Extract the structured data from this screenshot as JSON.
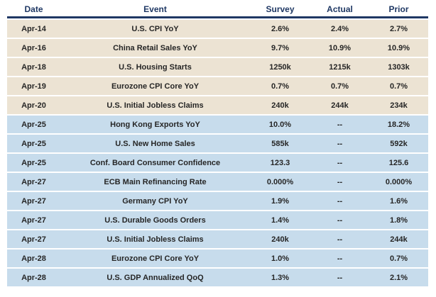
{
  "title": "Economic calendar table",
  "colors": {
    "header_text": "#1F3864",
    "header_rule": "#1F3864",
    "past_row_bg": "#ECE3D3",
    "upcoming_row_bg": "#C7DCEC",
    "cell_text": "#262626",
    "background": "#FFFFFF"
  },
  "chart_data": {
    "type": "table",
    "columns": [
      "Date",
      "Event",
      "Survey",
      "Actual",
      "Prior"
    ],
    "rows": [
      {
        "date": "Apr-14",
        "event": "U.S. CPI YoY",
        "survey": "2.6%",
        "actual": "2.4%",
        "prior": "2.7%",
        "group": "past"
      },
      {
        "date": "Apr-16",
        "event": "China Retail Sales YoY",
        "survey": "9.7%",
        "actual": "10.9%",
        "prior": "10.9%",
        "group": "past"
      },
      {
        "date": "Apr-18",
        "event": "U.S. Housing Starts",
        "survey": "1250k",
        "actual": "1215k",
        "prior": "1303k",
        "group": "past"
      },
      {
        "date": "Apr-19",
        "event": "Eurozone CPI Core YoY",
        "survey": "0.7%",
        "actual": "0.7%",
        "prior": "0.7%",
        "group": "past"
      },
      {
        "date": "Apr-20",
        "event": "U.S. Initial Jobless Claims",
        "survey": "240k",
        "actual": "244k",
        "prior": "234k",
        "group": "past"
      },
      {
        "date": "Apr-25",
        "event": "Hong Kong Exports YoY",
        "survey": "10.0%",
        "actual": "--",
        "prior": "18.2%",
        "group": "upcoming"
      },
      {
        "date": "Apr-25",
        "event": "U.S. New Home Sales",
        "survey": "585k",
        "actual": "--",
        "prior": "592k",
        "group": "upcoming"
      },
      {
        "date": "Apr-25",
        "event": "Conf.  Board Consumer Confidence",
        "survey": "123.3",
        "actual": "--",
        "prior": "125.6",
        "group": "upcoming"
      },
      {
        "date": "Apr-27",
        "event": "ECB Main Refinancing Rate",
        "survey": "0.000%",
        "actual": "--",
        "prior": "0.000%",
        "group": "upcoming"
      },
      {
        "date": "Apr-27",
        "event": "Germany CPI YoY",
        "survey": "1.9%",
        "actual": "--",
        "prior": "1.6%",
        "group": "upcoming"
      },
      {
        "date": "Apr-27",
        "event": "U.S. Durable Goods Orders",
        "survey": "1.4%",
        "actual": "--",
        "prior": "1.8%",
        "group": "upcoming"
      },
      {
        "date": "Apr-27",
        "event": "U.S. Initial Jobless Claims",
        "survey": "240k",
        "actual": "--",
        "prior": "244k",
        "group": "upcoming"
      },
      {
        "date": "Apr-28",
        "event": "Eurozone CPI Core YoY",
        "survey": "1.0%",
        "actual": "--",
        "prior": "0.7%",
        "group": "upcoming"
      },
      {
        "date": "Apr-28",
        "event": "U.S. GDP Annualized QoQ",
        "survey": "1.3%",
        "actual": "--",
        "prior": "2.1%",
        "group": "upcoming"
      }
    ]
  }
}
